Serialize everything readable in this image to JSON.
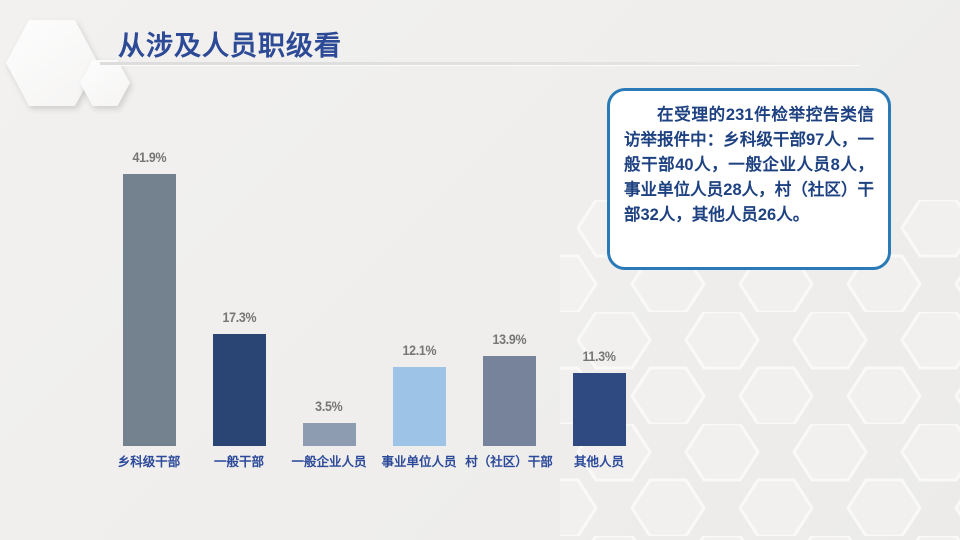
{
  "slide": {
    "title": "从涉及人员职级看"
  },
  "textbox": {
    "content": "在受理的231件检举控告类信访举报件中：乡科级干部97人，一般干部40人，一般企业人员8人，事业单位人员28人，村（社区）干部32人，其他人员26人。",
    "border_color": "#2a7ab8",
    "text_color": "#1e4181"
  },
  "chart_data": {
    "type": "bar",
    "title": "",
    "xlabel": "",
    "ylabel": "",
    "categories": [
      "乡科级干部",
      "一般干部",
      "一般企业人员",
      "事业单位人员",
      "村（社区）干部",
      "其他人员"
    ],
    "values": [
      41.9,
      17.3,
      3.5,
      12.1,
      13.9,
      11.3
    ],
    "value_labels": [
      "41.9%",
      "17.3%",
      "3.5%",
      "12.1%",
      "13.9%",
      "11.3%"
    ],
    "bar_colors": [
      "#74818f",
      "#2a4573",
      "#8d9cb0",
      "#9dc3e6",
      "#76839a",
      "#2e4a80"
    ],
    "value_label_color": "#767676",
    "category_label_color": "#2d4a9a",
    "ylim": [
      0,
      45
    ],
    "grid": false,
    "legend": false
  }
}
